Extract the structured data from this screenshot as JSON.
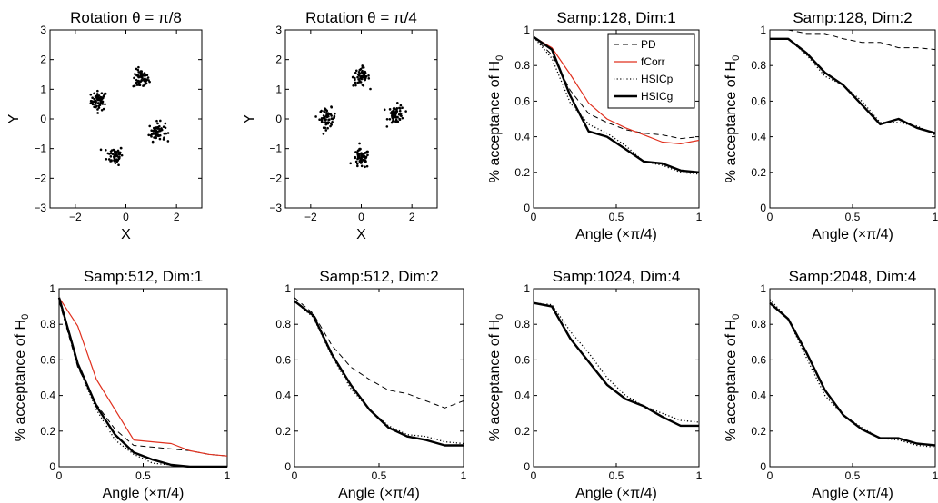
{
  "chart_data": [
    {
      "type": "scatter",
      "title": "Rotation θ = π/8",
      "xlabel": "X",
      "ylabel": "Y",
      "xlim": [
        -3,
        3
      ],
      "ylim": [
        -3,
        3
      ],
      "xticks": [
        "−2",
        "0",
        "2"
      ],
      "xtick_values": [
        -2,
        0,
        2
      ],
      "yticks": [
        "−3",
        "−2",
        "−1",
        "0",
        "1",
        "2",
        "3"
      ],
      "ytick_values": [
        -3,
        -2,
        -1,
        0,
        1,
        2,
        3
      ],
      "clusters": [
        {
          "center": [
            -1.06,
            0.62
          ],
          "count": 60
        },
        {
          "center": [
            0.6,
            1.34
          ],
          "count": 60
        },
        {
          "center": [
            -0.43,
            -1.22
          ],
          "count": 60
        },
        {
          "center": [
            1.23,
            -0.43
          ],
          "count": 60
        }
      ]
    },
    {
      "type": "scatter",
      "title": "Rotation θ = π/4",
      "xlabel": "X",
      "ylabel": "Y",
      "xlim": [
        -3,
        3
      ],
      "ylim": [
        -3,
        3
      ],
      "xticks": [
        "−2",
        "0",
        "2"
      ],
      "xtick_values": [
        -2,
        0,
        2
      ],
      "yticks": [
        "−3",
        "−2",
        "−1",
        "0",
        "1",
        "2",
        "3"
      ],
      "ytick_values": [
        -3,
        -2,
        -1,
        0,
        1,
        2,
        3
      ],
      "clusters": [
        {
          "center": [
            -1.33,
            0.04
          ],
          "count": 60
        },
        {
          "center": [
            0.0,
            1.42
          ],
          "count": 60
        },
        {
          "center": [
            0.0,
            -1.35
          ],
          "count": 60
        },
        {
          "center": [
            1.38,
            0.15
          ],
          "count": 60
        }
      ]
    },
    {
      "type": "line",
      "title": "Samp:128, Dim:1",
      "xlabel": "Angle (×π/4)",
      "ylabel": "% acceptance of H",
      "ylabel_sub": "0",
      "xlim": [
        0,
        1
      ],
      "ylim": [
        0,
        1
      ],
      "xticks": [
        "0",
        "0.5",
        "1"
      ],
      "xtick_values": [
        0,
        0.5,
        1
      ],
      "yticks": [
        "0",
        "0.2",
        "0.4",
        "0.6",
        "0.8",
        "1"
      ],
      "ytick_values": [
        0,
        0.2,
        0.4,
        0.6,
        0.8,
        1
      ],
      "legend": {
        "position": "top-right",
        "entries": [
          "PD",
          "fCorr",
          "HSICp",
          "HSICg"
        ]
      },
      "x": [
        0,
        0.111,
        0.222,
        0.333,
        0.444,
        0.556,
        0.667,
        0.778,
        0.889,
        1.0
      ],
      "series": [
        {
          "name": "PD",
          "style": "dashed",
          "values": [
            0.96,
            0.86,
            0.66,
            0.53,
            0.48,
            0.44,
            0.42,
            0.41,
            0.39,
            0.4
          ]
        },
        {
          "name": "fCorr",
          "style": "red",
          "values": [
            0.96,
            0.9,
            0.75,
            0.59,
            0.5,
            0.45,
            0.41,
            0.37,
            0.36,
            0.38
          ]
        },
        {
          "name": "HSICp",
          "style": "dotted",
          "values": [
            0.96,
            0.84,
            0.59,
            0.47,
            0.42,
            0.35,
            0.26,
            0.24,
            0.2,
            0.19
          ]
        },
        {
          "name": "HSICg",
          "style": "thick",
          "values": [
            0.96,
            0.89,
            0.63,
            0.43,
            0.4,
            0.33,
            0.26,
            0.25,
            0.21,
            0.2
          ]
        }
      ]
    },
    {
      "type": "line",
      "title": "Samp:128, Dim:2",
      "xlabel": "Angle (×π/4)",
      "ylabel": "% acceptance of H",
      "ylabel_sub": "0",
      "xlim": [
        0,
        1
      ],
      "ylim": [
        0,
        1
      ],
      "xticks": [
        "0",
        "0.5",
        "1"
      ],
      "xtick_values": [
        0,
        0.5,
        1
      ],
      "yticks": [
        "0",
        "0.2",
        "0.4",
        "0.6",
        "0.8",
        "1"
      ],
      "ytick_values": [
        0,
        0.2,
        0.4,
        0.6,
        0.8,
        1
      ],
      "x": [
        0,
        0.111,
        0.222,
        0.333,
        0.444,
        0.556,
        0.667,
        0.778,
        0.889,
        1.0
      ],
      "series": [
        {
          "style": "dashed",
          "values": [
            1.0,
            1.0,
            0.98,
            0.98,
            0.95,
            0.93,
            0.93,
            0.9,
            0.9,
            0.89
          ]
        },
        {
          "style": "dotted",
          "values": [
            0.95,
            0.95,
            0.86,
            0.74,
            0.69,
            0.6,
            0.48,
            0.48,
            0.46,
            0.41
          ]
        },
        {
          "style": "thick",
          "values": [
            0.95,
            0.95,
            0.87,
            0.76,
            0.69,
            0.58,
            0.47,
            0.5,
            0.45,
            0.42
          ]
        }
      ]
    },
    {
      "type": "line",
      "title": "Samp:512, Dim:1",
      "xlabel": "Angle (×π/4)",
      "ylabel": "% acceptance of H",
      "ylabel_sub": "0",
      "xlim": [
        0,
        1
      ],
      "ylim": [
        0,
        1
      ],
      "xticks": [
        "0",
        "0.5",
        "1"
      ],
      "xtick_values": [
        0,
        0.5,
        1
      ],
      "yticks": [
        "0",
        "0.2",
        "0.4",
        "0.6",
        "0.8",
        "1"
      ],
      "ytick_values": [
        0,
        0.2,
        0.4,
        0.6,
        0.8,
        1
      ],
      "x": [
        0,
        0.111,
        0.222,
        0.333,
        0.444,
        0.556,
        0.667,
        0.778,
        0.889,
        1.0
      ],
      "series": [
        {
          "style": "dashed",
          "values": [
            0.93,
            0.56,
            0.35,
            0.21,
            0.12,
            0.11,
            0.1,
            0.09,
            0.07,
            0.06
          ]
        },
        {
          "style": "red",
          "values": [
            0.95,
            0.79,
            0.49,
            0.32,
            0.15,
            0.14,
            0.13,
            0.09,
            0.07,
            0.06
          ]
        },
        {
          "style": "dotted",
          "values": [
            0.95,
            0.57,
            0.32,
            0.15,
            0.07,
            0.02,
            0.01,
            0.0,
            0.0,
            0.0
          ]
        },
        {
          "style": "thick",
          "values": [
            0.95,
            0.58,
            0.34,
            0.18,
            0.08,
            0.04,
            0.01,
            0.0,
            0.0,
            0.0
          ]
        }
      ]
    },
    {
      "type": "line",
      "title": "Samp:512, Dim:2",
      "xlabel": "Angle (×π/4)",
      "ylabel": "",
      "xlim": [
        0,
        1
      ],
      "ylim": [
        0,
        1
      ],
      "xticks": [
        "0",
        "0.5",
        "1"
      ],
      "xtick_values": [
        0,
        0.5,
        1
      ],
      "yticks": [
        "0",
        "0.2",
        "0.4",
        "0.6",
        "0.8",
        "1"
      ],
      "ytick_values": [
        0,
        0.2,
        0.4,
        0.6,
        0.8,
        1
      ],
      "x": [
        0,
        0.111,
        0.222,
        0.333,
        0.444,
        0.556,
        0.667,
        0.778,
        0.889,
        1.0
      ],
      "series": [
        {
          "style": "dashed",
          "values": [
            0.95,
            0.86,
            0.68,
            0.56,
            0.49,
            0.43,
            0.41,
            0.37,
            0.33,
            0.37
          ]
        },
        {
          "style": "dotted",
          "values": [
            0.93,
            0.84,
            0.62,
            0.44,
            0.32,
            0.23,
            0.18,
            0.17,
            0.14,
            0.13
          ]
        },
        {
          "style": "thick",
          "values": [
            0.93,
            0.85,
            0.63,
            0.46,
            0.32,
            0.22,
            0.17,
            0.15,
            0.12,
            0.12
          ]
        }
      ]
    },
    {
      "type": "line",
      "title": "Samp:1024, Dim:4",
      "xlabel": "Angle (×π/4)",
      "ylabel": "% acceptance of H",
      "ylabel_sub": "0",
      "xlim": [
        0,
        1
      ],
      "ylim": [
        0,
        1
      ],
      "xticks": [
        "0",
        "0.5",
        "1"
      ],
      "xtick_values": [
        0,
        0.5,
        1
      ],
      "yticks": [
        "0",
        "0.2",
        "0.4",
        "0.6",
        "0.8",
        "1"
      ],
      "ytick_values": [
        0,
        0.2,
        0.4,
        0.6,
        0.8,
        1
      ],
      "x": [
        0,
        0.111,
        0.222,
        0.333,
        0.444,
        0.556,
        0.667,
        0.778,
        0.889,
        1.0
      ],
      "series": [
        {
          "style": "dashed",
          "values": [
            1.0,
            1.0,
            1.0,
            1.0,
            1.0,
            1.0,
            1.0,
            1.0,
            1.0,
            1.0
          ]
        },
        {
          "style": "dotted",
          "values": [
            0.92,
            0.91,
            0.76,
            0.64,
            0.5,
            0.4,
            0.34,
            0.3,
            0.26,
            0.25
          ]
        },
        {
          "style": "thick",
          "values": [
            0.92,
            0.9,
            0.72,
            0.59,
            0.46,
            0.38,
            0.34,
            0.28,
            0.23,
            0.23
          ]
        }
      ]
    },
    {
      "type": "line",
      "title": "Samp:2048, Dim:4",
      "xlabel": "Angle (×π/4)",
      "ylabel": "% acceptance of H",
      "ylabel_sub": "0",
      "xlim": [
        0,
        1
      ],
      "ylim": [
        0,
        1
      ],
      "xticks": [
        "0",
        "0.5",
        "1"
      ],
      "xtick_values": [
        0,
        0.5,
        1
      ],
      "yticks": [
        "0",
        "0.2",
        "0.4",
        "0.6",
        "0.8",
        "1"
      ],
      "ytick_values": [
        0,
        0.2,
        0.4,
        0.6,
        0.8,
        1
      ],
      "x": [
        0,
        0.111,
        0.222,
        0.333,
        0.444,
        0.556,
        0.667,
        0.778,
        0.889,
        1.0
      ],
      "series": [
        {
          "style": "dashed",
          "values": [
            1.0,
            1.0,
            1.0,
            1.0,
            1.0,
            1.0,
            1.0,
            1.0,
            1.0,
            1.0
          ]
        },
        {
          "style": "dotted",
          "values": [
            0.94,
            0.83,
            0.61,
            0.4,
            0.29,
            0.22,
            0.16,
            0.15,
            0.12,
            0.11
          ]
        },
        {
          "style": "thick",
          "values": [
            0.92,
            0.83,
            0.64,
            0.43,
            0.29,
            0.21,
            0.16,
            0.16,
            0.13,
            0.12
          ]
        }
      ]
    }
  ]
}
